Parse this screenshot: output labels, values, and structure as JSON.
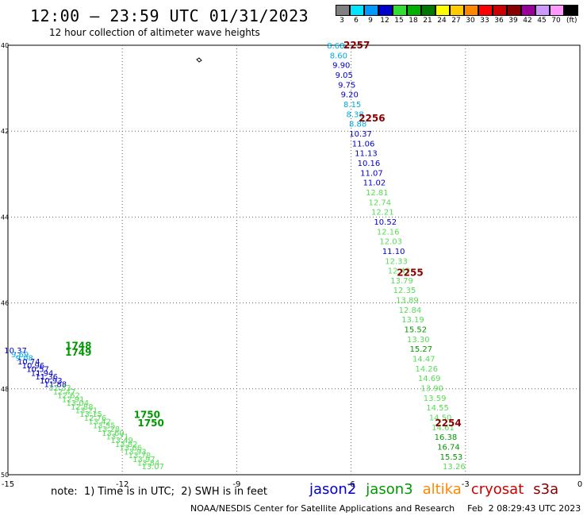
{
  "header": {
    "title": "12:00 – 23:59 UTC 01/31/2023",
    "subtitle": "12 hour collection of altimeter wave heights"
  },
  "legend": {
    "unit": "(ft)",
    "bins": [
      {
        "label": "3",
        "color": "#808080"
      },
      {
        "label": "6",
        "color": "#00e5ff"
      },
      {
        "label": "9",
        "color": "#0099ff"
      },
      {
        "label": "12",
        "color": "#0000cc"
      },
      {
        "label": "15",
        "color": "#33dd33"
      },
      {
        "label": "18",
        "color": "#00b000"
      },
      {
        "label": "21",
        "color": "#007700"
      },
      {
        "label": "24",
        "color": "#ffff00"
      },
      {
        "label": "27",
        "color": "#ffcc00"
      },
      {
        "label": "30",
        "color": "#ff8800"
      },
      {
        "label": "33",
        "color": "#ff0000"
      },
      {
        "label": "36",
        "color": "#cc0000"
      },
      {
        "label": "39",
        "color": "#880000"
      },
      {
        "label": "42",
        "color": "#990099"
      },
      {
        "label": "45",
        "color": "#cc99ff"
      },
      {
        "label": "70",
        "color": "#ff99ff"
      },
      {
        "label": "",
        "color": "#000000"
      }
    ]
  },
  "axes": {
    "x_ticks": [
      "-15",
      "-12",
      "-9",
      "-6",
      "-3",
      "0"
    ],
    "y_ticks": [
      "40",
      "42",
      "44",
      "46",
      "48",
      "50"
    ]
  },
  "colors": {
    "cyan": "#00aadd",
    "blue": "#0000cc",
    "light_green": "#55dd55",
    "dark_green": "#009900",
    "dark_red": "#880000",
    "grid": "#666666"
  },
  "tracks": [
    {
      "name": "east-track",
      "start": [
        -6.4,
        40
      ],
      "end": [
        -3.3,
        49.8
      ],
      "times": [
        {
          "label": "2257",
          "lon": -6.2,
          "lat": 40.0
        },
        {
          "label": "2256",
          "lon": -5.8,
          "lat": 41.7
        },
        {
          "label": "2255",
          "lon": -4.8,
          "lat": 45.3
        },
        {
          "label": "2254",
          "lon": -3.8,
          "lat": 48.8
        }
      ],
      "points": [
        {
          "v": "8.68",
          "c": "cyan"
        },
        {
          "v": "8.60",
          "c": "cyan"
        },
        {
          "v": "9.90",
          "c": "blue"
        },
        {
          "v": "9.05",
          "c": "blue"
        },
        {
          "v": "9.75",
          "c": "blue"
        },
        {
          "v": "9.20",
          "c": "blue"
        },
        {
          "v": "8.15",
          "c": "cyan"
        },
        {
          "v": "8.38",
          "c": "cyan"
        },
        {
          "v": "8.88",
          "c": "cyan"
        },
        {
          "v": "10.37",
          "c": "blue"
        },
        {
          "v": "11.06",
          "c": "blue"
        },
        {
          "v": "11.13",
          "c": "blue"
        },
        {
          "v": "10.16",
          "c": "blue"
        },
        {
          "v": "11.07",
          "c": "blue"
        },
        {
          "v": "11.02",
          "c": "blue"
        },
        {
          "v": "12.81",
          "c": "light_green"
        },
        {
          "v": "12.74",
          "c": "light_green"
        },
        {
          "v": "12.21",
          "c": "light_green"
        },
        {
          "v": "10.52",
          "c": "blue"
        },
        {
          "v": "12.16",
          "c": "light_green"
        },
        {
          "v": "12.03",
          "c": "light_green"
        },
        {
          "v": "11.10",
          "c": "blue"
        },
        {
          "v": "12.33",
          "c": "light_green"
        },
        {
          "v": "12.42",
          "c": "light_green"
        },
        {
          "v": "13.79",
          "c": "light_green"
        },
        {
          "v": "12.35",
          "c": "light_green"
        },
        {
          "v": "13.89",
          "c": "light_green"
        },
        {
          "v": "12.84",
          "c": "light_green"
        },
        {
          "v": "13.19",
          "c": "light_green"
        },
        {
          "v": "15.52",
          "c": "dark_green"
        },
        {
          "v": "13.30",
          "c": "light_green"
        },
        {
          "v": "15.27",
          "c": "dark_green"
        },
        {
          "v": "14.47",
          "c": "light_green"
        },
        {
          "v": "14.26",
          "c": "light_green"
        },
        {
          "v": "14.69",
          "c": "light_green"
        },
        {
          "v": "13.90",
          "c": "light_green"
        },
        {
          "v": "13.59",
          "c": "light_green"
        },
        {
          "v": "14.55",
          "c": "light_green"
        },
        {
          "v": "14.50",
          "c": "light_green"
        },
        {
          "v": "14.61",
          "c": "light_green"
        },
        {
          "v": "16.38",
          "c": "dark_green"
        },
        {
          "v": "16.74",
          "c": "dark_green"
        },
        {
          "v": "15.53",
          "c": "dark_green"
        },
        {
          "v": "13.26",
          "c": "light_green"
        }
      ]
    },
    {
      "name": "west-track",
      "start": [
        -14.8,
        47.1
      ],
      "end": [
        -11.2,
        49.8
      ],
      "times": [
        {
          "label": "1748",
          "lon": -13.5,
          "lat": 47.0
        },
        {
          "label": "1749",
          "lon": -13.5,
          "lat": 47.15
        },
        {
          "label": "1750",
          "lon": -11.7,
          "lat": 48.6
        },
        {
          "label": "1750",
          "lon": -11.6,
          "lat": 48.8
        }
      ],
      "points": [
        {
          "v": "10.37",
          "c": "blue"
        },
        {
          "v": "9.69",
          "c": "cyan"
        },
        {
          "v": "9.08",
          "c": "cyan"
        },
        {
          "v": "10.74",
          "c": "blue"
        },
        {
          "v": "10.96",
          "c": "blue"
        },
        {
          "v": "10.57",
          "c": "blue"
        },
        {
          "v": "11.94",
          "c": "blue"
        },
        {
          "v": "11.36",
          "c": "blue"
        },
        {
          "v": "10.93",
          "c": "blue"
        },
        {
          "v": "11.88",
          "c": "blue"
        },
        {
          "v": "12.33",
          "c": "light_green"
        },
        {
          "v": "12.47",
          "c": "light_green"
        },
        {
          "v": "12.62",
          "c": "light_green"
        },
        {
          "v": "12.91",
          "c": "light_green"
        },
        {
          "v": "13.04",
          "c": "light_green"
        },
        {
          "v": "12.88",
          "c": "light_green"
        },
        {
          "v": "13.21",
          "c": "light_green"
        },
        {
          "v": "13.15",
          "c": "light_green"
        },
        {
          "v": "12.76",
          "c": "light_green"
        },
        {
          "v": "13.42",
          "c": "light_green"
        },
        {
          "v": "13.55",
          "c": "light_green"
        },
        {
          "v": "13.28",
          "c": "light_green"
        },
        {
          "v": "13.60",
          "c": "light_green"
        },
        {
          "v": "13.71",
          "c": "light_green"
        },
        {
          "v": "13.49",
          "c": "light_green"
        },
        {
          "v": "13.82",
          "c": "light_green"
        },
        {
          "v": "13.66",
          "c": "light_green"
        },
        {
          "v": "13.93",
          "c": "light_green"
        },
        {
          "v": "13.78",
          "c": "light_green"
        },
        {
          "v": "13.97",
          "c": "light_green"
        },
        {
          "v": "13.84",
          "c": "light_green"
        },
        {
          "v": "13.07",
          "c": "light_green"
        }
      ]
    }
  ],
  "footer": {
    "note": "note:  1) Time is in UTC;  2) SWH is in feet",
    "satellites": [
      {
        "label": "jason2",
        "color": "#0000cc"
      },
      {
        "label": "jason3",
        "color": "#009900"
      },
      {
        "label": "altika",
        "color": "#ff8800"
      },
      {
        "label": "cryosat",
        "color": "#cc0000"
      },
      {
        "label": "s3a",
        "color": "#880000"
      }
    ],
    "credits": "NOAA/NESDIS Center for Satellite Applications and Research",
    "generated": "Feb  2 08:29:43 UTC 2023"
  }
}
